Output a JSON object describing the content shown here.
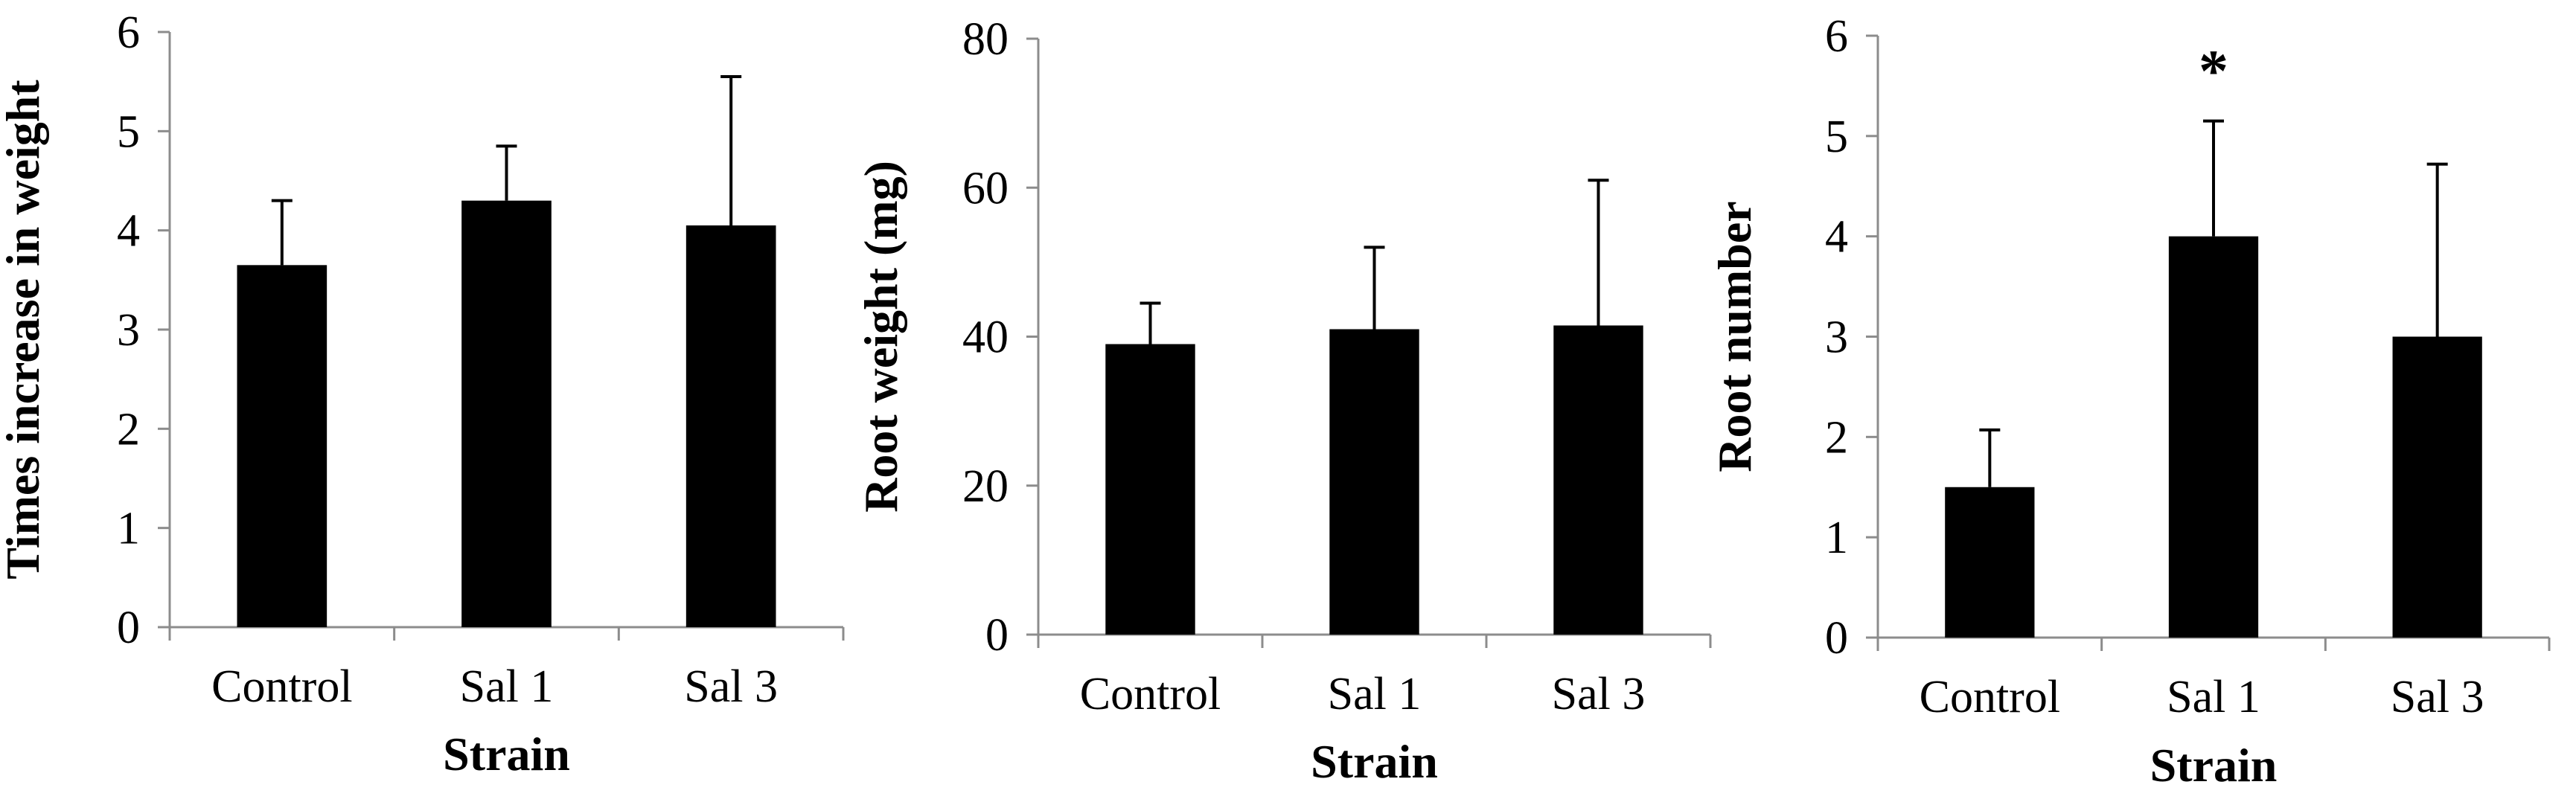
{
  "chart_data": [
    {
      "type": "bar",
      "title": "",
      "xlabel": "Strain",
      "ylabel": "Times increase in weight",
      "categories": [
        "Control",
        "Sal 1",
        "Sal 3"
      ],
      "values": [
        3.65,
        4.3,
        4.05
      ],
      "error_upper": [
        0.65,
        0.55,
        1.5
      ],
      "ylim": [
        0,
        6
      ],
      "yticks": [
        0,
        1,
        2,
        3,
        4,
        5,
        6
      ],
      "annotations": [],
      "grid": false
    },
    {
      "type": "bar",
      "title": "",
      "xlabel": "Strain",
      "ylabel": "Root weight (mg)",
      "categories": [
        "Control",
        "Sal 1",
        "Sal 3"
      ],
      "values": [
        39,
        41,
        41.5
      ],
      "error_upper": [
        5.5,
        11,
        19.5
      ],
      "ylim": [
        0,
        80
      ],
      "yticks": [
        0,
        20,
        40,
        60,
        80
      ],
      "annotations": [],
      "grid": false
    },
    {
      "type": "bar",
      "title": "",
      "xlabel": "Strain",
      "ylabel": "Root number",
      "categories": [
        "Control",
        "Sal 1",
        "Sal 3"
      ],
      "values": [
        1.5,
        4.0,
        3.0
      ],
      "error_upper": [
        0.57,
        1.15,
        1.72
      ],
      "ylim": [
        0,
        6
      ],
      "yticks": [
        0,
        1,
        2,
        3,
        4,
        5,
        6
      ],
      "annotations": [
        {
          "category": "Sal 1",
          "text": "*"
        }
      ],
      "grid": false
    }
  ]
}
